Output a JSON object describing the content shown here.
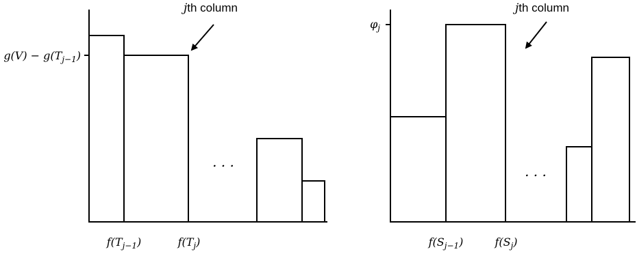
{
  "left_panel": {
    "ylabel_main": "g(V) − g(T",
    "ylabel_sub": "j−1",
    "ylabel_close": ")",
    "annotation_j": "j",
    "annotation_rest": "th column",
    "xtick1_main": "f(T",
    "xtick1_sub": "j−1",
    "xtick1_close": ")",
    "xtick2_main": "f(T",
    "xtick2_sub": "j",
    "xtick2_close": ")",
    "ellipsis": ". . ."
  },
  "right_panel": {
    "ylabel_main": "φ",
    "ylabel_sub": "j",
    "annotation_j": "j",
    "annotation_rest": "th column",
    "xtick1_main": "f(S",
    "xtick1_sub": "j−1",
    "xtick1_close": ")",
    "xtick2_main": "f(S",
    "xtick2_sub": "j",
    "xtick2_close": ")",
    "ellipsis": ". . ."
  }
}
